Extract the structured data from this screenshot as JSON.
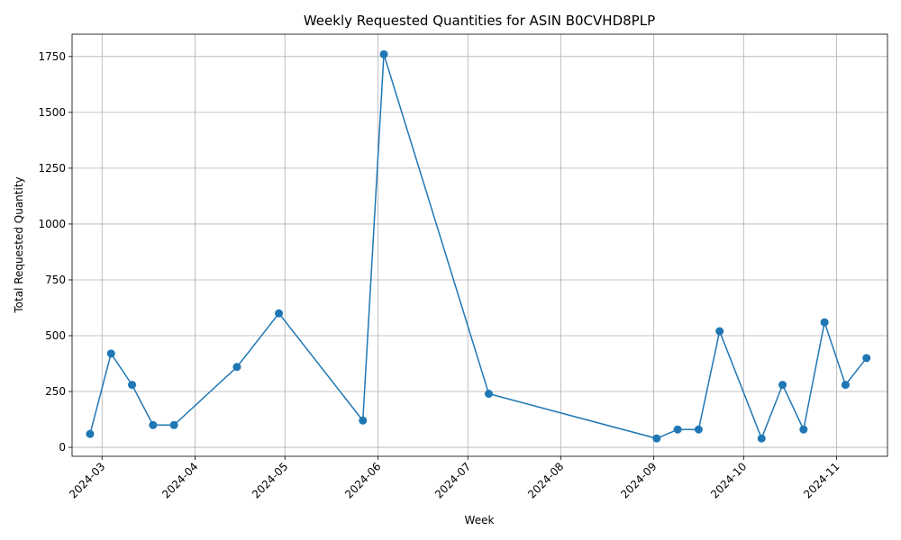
{
  "chart_data": {
    "type": "line",
    "title": "Weekly Requested Quantities for ASIN B0CVHD8PLP",
    "xlabel": "Week",
    "ylabel": "Total Requested Quantity",
    "x_type": "date",
    "xlim": [
      "2024-02-20",
      "2024-11-18"
    ],
    "ylim": [
      -40,
      1850
    ],
    "grid": true,
    "x_ticks": [
      "2024-03-01",
      "2024-04-01",
      "2024-05-01",
      "2024-06-01",
      "2024-07-01",
      "2024-08-01",
      "2024-09-01",
      "2024-10-01",
      "2024-11-01"
    ],
    "x_tick_labels": [
      "2024-03",
      "2024-04",
      "2024-05",
      "2024-06",
      "2024-07",
      "2024-08",
      "2024-09",
      "2024-10",
      "2024-11"
    ],
    "y_ticks": [
      0,
      250,
      500,
      750,
      1000,
      1250,
      1500,
      1750
    ],
    "y_tick_labels": [
      "0",
      "250",
      "500",
      "750",
      "1000",
      "1250",
      "1500",
      "1750"
    ],
    "series": [
      {
        "color": "#1f77b4",
        "marker": "circle",
        "points": [
          {
            "x": "2024-02-26",
            "y": 60
          },
          {
            "x": "2024-03-04",
            "y": 420
          },
          {
            "x": "2024-03-11",
            "y": 280
          },
          {
            "x": "2024-03-18",
            "y": 100
          },
          {
            "x": "2024-03-25",
            "y": 100
          },
          {
            "x": "2024-04-15",
            "y": 360
          },
          {
            "x": "2024-04-29",
            "y": 600
          },
          {
            "x": "2024-05-27",
            "y": 120
          },
          {
            "x": "2024-06-03",
            "y": 1760
          },
          {
            "x": "2024-07-08",
            "y": 240
          },
          {
            "x": "2024-09-02",
            "y": 40
          },
          {
            "x": "2024-09-09",
            "y": 80
          },
          {
            "x": "2024-09-16",
            "y": 80
          },
          {
            "x": "2024-09-23",
            "y": 520
          },
          {
            "x": "2024-10-07",
            "y": 40
          },
          {
            "x": "2024-10-14",
            "y": 280
          },
          {
            "x": "2024-10-21",
            "y": 80
          },
          {
            "x": "2024-10-28",
            "y": 560
          },
          {
            "x": "2024-11-04",
            "y": 280
          },
          {
            "x": "2024-11-11",
            "y": 400
          }
        ]
      }
    ]
  }
}
